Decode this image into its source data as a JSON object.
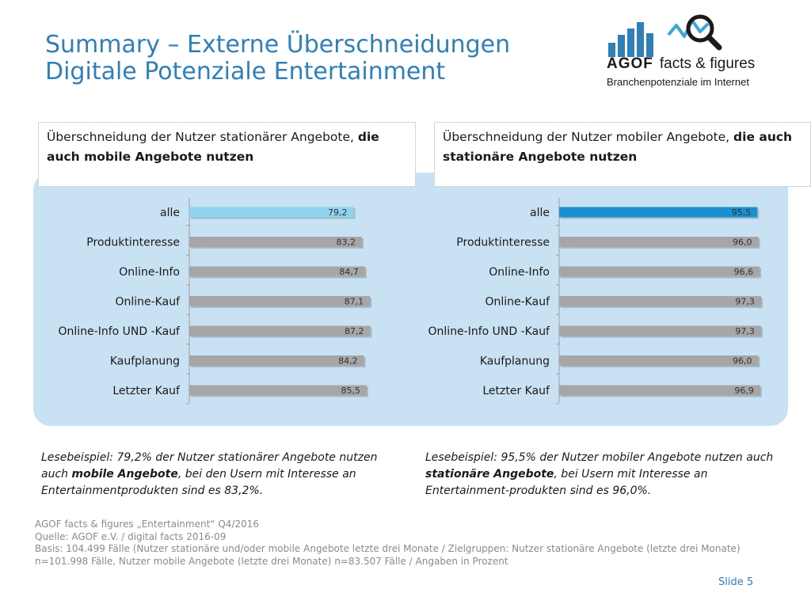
{
  "title": {
    "line1": "Summary – Externe Überschneidungen",
    "line2": "Digitale Potenziale Entertainment"
  },
  "logo": {
    "brand": "AGOF",
    "product": "facts & figures",
    "tagline": "Branchenpotenziale im Internet",
    "bar_color": "#2f7fb8",
    "wave_color": "#3aa7d8"
  },
  "headers": {
    "left": {
      "text_normal": "Überschneidung der Nutzer stationärer Angebote, ",
      "text_bold": "die auch mobile Angebote nutzen"
    },
    "right": {
      "text_normal": "Überschneidung der Nutzer mobiler Angebote, ",
      "text_bold": "die auch stationäre Angebote nutzen"
    }
  },
  "colors": {
    "panel": "#c8e2f3",
    "bar_gray": "#a6a6a6",
    "bar_left_highlight": "#8fd3ee",
    "bar_right_highlight": "#1b8fcf",
    "title": "#2f7fb8"
  },
  "chart_data": [
    {
      "type": "bar",
      "orientation": "horizontal",
      "categories": [
        "alle",
        "Produktinteresse",
        "Online-Info",
        "Online-Kauf",
        "Online-Info UND -Kauf",
        "Kaufplanung",
        "Letzter Kauf"
      ],
      "values": [
        79.2,
        83.2,
        84.7,
        87.1,
        87.2,
        84.2,
        85.5
      ],
      "value_labels": [
        "79,2",
        "83,2",
        "84,7",
        "87,1",
        "87,2",
        "84,2",
        "85,5"
      ],
      "highlight_index": 0,
      "xlim": [
        0,
        100
      ]
    },
    {
      "type": "bar",
      "orientation": "horizontal",
      "categories": [
        "alle",
        "Produktinteresse",
        "Online-Info",
        "Online-Kauf",
        "Online-Info UND -Kauf",
        "Kaufplanung",
        "Letzter Kauf"
      ],
      "values": [
        95.5,
        96.0,
        96.6,
        97.3,
        97.3,
        96.0,
        96.9
      ],
      "value_labels": [
        "95,5",
        "96,0",
        "96,6",
        "97,3",
        "97,3",
        "96,0",
        "96,9"
      ],
      "highlight_index": 0,
      "xlim": [
        0,
        100
      ]
    }
  ],
  "notes": {
    "left": {
      "p1": "Lesebeispiel: 79,2% der Nutzer stationärer Angebote nutzen auch ",
      "b": "mobile Angebote",
      "p2": ", bei den Usern mit Interesse an Entertainmentprodukten sind es 83,2%."
    },
    "right": {
      "p1": "Lesebeispiel: 95,5% der Nutzer mobiler Angebote nutzen auch ",
      "b": "stationäre Angebote",
      "p2": ", bei Usern mit Interesse an Entertainment-produkten sind es 96,0%."
    }
  },
  "footer": {
    "line1": "AGOF facts & figures „Entertainment“ Q4/2016",
    "line2": "Quelle: AGOF e.V. / digital facts 2016-09",
    "line3": "Basis: 104.499 Fälle (Nutzer stationäre und/oder mobile Angebote letzte drei Monate / Zielgruppen: Nutzer stationäre Angebote (letzte drei Monate) n=101.998 Fälle, Nutzer mobile Angebote (letzte drei Monate) n=83.507 Fälle / Angaben in Prozent"
  },
  "slide_label": "Slide 5"
}
